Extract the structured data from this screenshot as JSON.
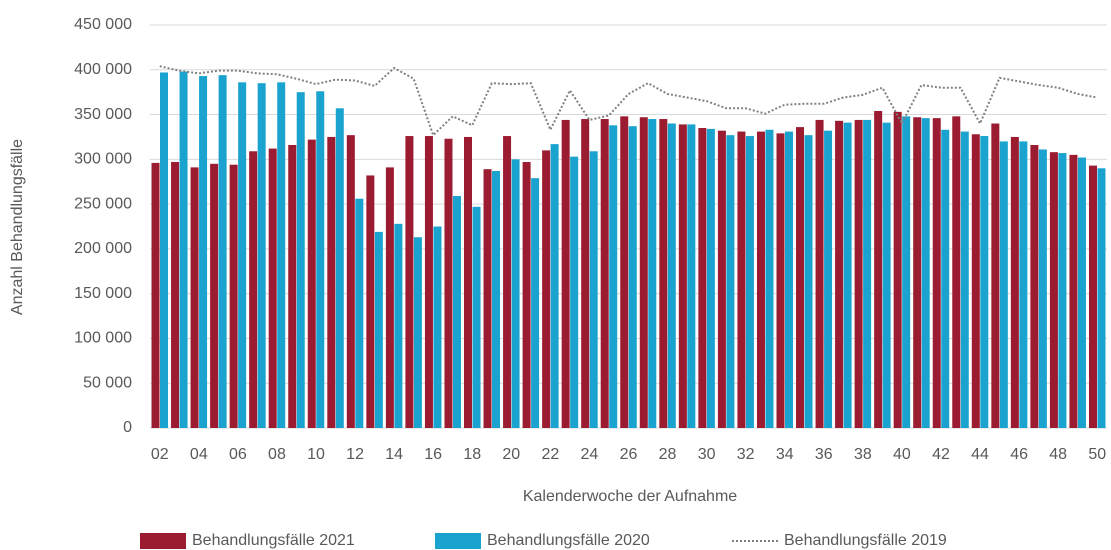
{
  "chart_data": {
    "type": "bar",
    "x_label": "Kalenderwoche der Aufnahme",
    "y_label": "Anzahl Behandlungsfälle",
    "categories": [
      "02",
      null,
      "04",
      null,
      "06",
      null,
      "08",
      null,
      "10",
      null,
      "12",
      null,
      "14",
      null,
      "16",
      null,
      "18",
      null,
      "20",
      null,
      "22",
      null,
      "24",
      null,
      "26",
      null,
      "28",
      null,
      "30",
      null,
      "32",
      null,
      "34",
      null,
      "36",
      null,
      "38",
      null,
      "40",
      null,
      "42",
      null,
      "44",
      null,
      "46",
      null,
      "48",
      null,
      "50"
    ],
    "ylim": [
      0,
      450000
    ],
    "yticks": [
      {
        "value": 0,
        "label": "0"
      },
      {
        "value": 50000,
        "label": "50 000"
      },
      {
        "value": 100000,
        "label": "100 000"
      },
      {
        "value": 150000,
        "label": "150 000"
      },
      {
        "value": 200000,
        "label": "200 000"
      },
      {
        "value": 250000,
        "label": "250 000"
      },
      {
        "value": 300000,
        "label": "300 000"
      },
      {
        "value": 350000,
        "label": "350 000"
      },
      {
        "value": 400000,
        "label": "400 000"
      },
      {
        "value": 450000,
        "label": "450 000"
      }
    ],
    "grid": true,
    "legend": "bottom",
    "series": [
      {
        "name": "Behandlungsfälle 2021",
        "type": "bar",
        "color": "#9b1b30",
        "values": [
          296000,
          297000,
          291000,
          295000,
          294000,
          309000,
          312000,
          316000,
          322000,
          325000,
          327000,
          282000,
          291000,
          326000,
          326000,
          323000,
          325000,
          289000,
          326000,
          297000,
          310000,
          344000,
          345000,
          345000,
          348000,
          347000,
          345000,
          339000,
          335000,
          332000,
          331000,
          331000,
          329000,
          336000,
          344000,
          343000,
          344000,
          354000,
          353000,
          347000,
          346000,
          348000,
          328000,
          340000,
          325000,
          316000,
          308000,
          305000,
          293000
        ]
      },
      {
        "name": "Behandlungsfälle 2020",
        "type": "bar",
        "color": "#1ba3d0",
        "values": [
          397000,
          398000,
          393000,
          394000,
          386000,
          385000,
          386000,
          375000,
          376000,
          357000,
          256000,
          219000,
          228000,
          213000,
          225000,
          259000,
          247000,
          287000,
          300000,
          279000,
          317000,
          303000,
          309000,
          338000,
          337000,
          345000,
          340000,
          339000,
          334000,
          327000,
          326000,
          333000,
          331000,
          327000,
          332000,
          341000,
          344000,
          341000,
          348000,
          346000,
          333000,
          331000,
          326000,
          320000,
          320000,
          311000,
          307000,
          302000,
          290000
        ]
      },
      {
        "name": "Behandlungsfälle 2019",
        "type": "line",
        "color": "#808080",
        "values": [
          404000,
          399000,
          396000,
          399000,
          399000,
          396000,
          395000,
          390000,
          384000,
          389000,
          388000,
          382000,
          402000,
          390000,
          327000,
          348000,
          338000,
          385000,
          384000,
          385000,
          333000,
          377000,
          344000,
          349000,
          373000,
          385000,
          373000,
          369000,
          365000,
          357000,
          357000,
          351000,
          361000,
          362000,
          362000,
          369000,
          372000,
          380000,
          340000,
          383000,
          380000,
          380000,
          340000,
          391000,
          387000,
          383000,
          380000,
          373000,
          369000
        ]
      }
    ]
  }
}
